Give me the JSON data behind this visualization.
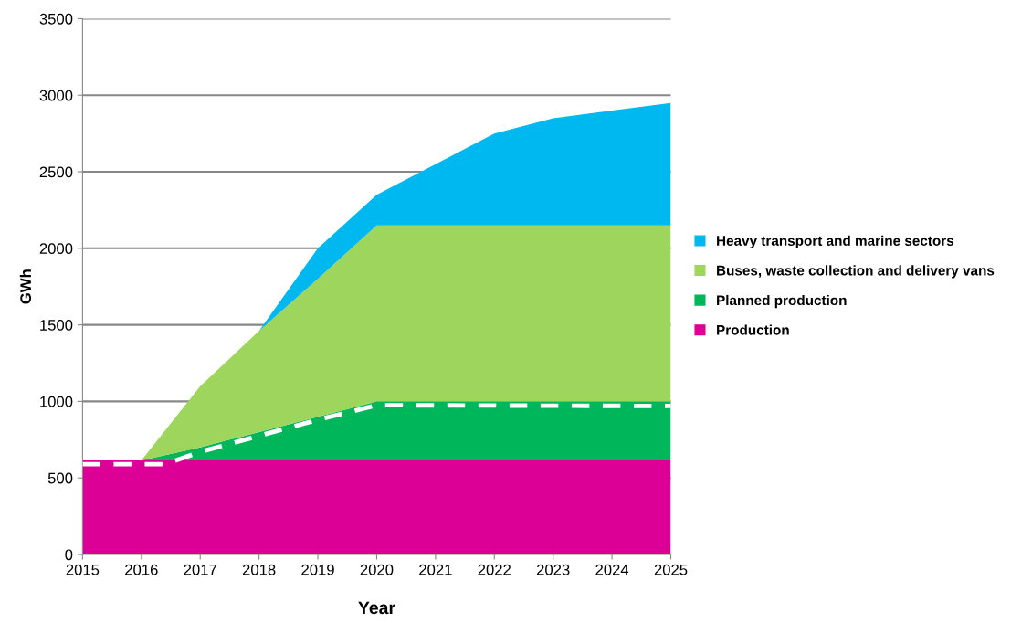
{
  "chart_data": {
    "type": "area",
    "stacked": true,
    "xlabel": "Year",
    "ylabel": "GWh",
    "x": [
      2015,
      2016,
      2017,
      2018,
      2019,
      2020,
      2021,
      2022,
      2023,
      2024,
      2025
    ],
    "series": [
      {
        "name": "Production",
        "color": "#dc0096",
        "values": [
          615,
          615,
          615,
          615,
          615,
          615,
          615,
          615,
          615,
          615,
          615
        ]
      },
      {
        "name": "Planned production",
        "color": "#00b65a",
        "values": [
          0,
          0,
          85,
          185,
          285,
          385,
          385,
          385,
          385,
          385,
          385
        ]
      },
      {
        "name": "Buses, waste collection and delivery vans",
        "color": "#9ed55d",
        "values": [
          0,
          0,
          400,
          660,
          900,
          1150,
          1150,
          1150,
          1150,
          1150,
          1150
        ]
      },
      {
        "name": "Heavy transport and marine sectors",
        "color": "#00b8f0",
        "values": [
          0,
          0,
          0,
          0,
          200,
          200,
          400,
          600,
          700,
          750,
          800
        ]
      },
      {
        "type": "line",
        "color": "#ffffff",
        "line_style": "dashed",
        "x": [
          2015,
          2016.4,
          2017,
          2018,
          2019,
          2020,
          2025
        ],
        "values": [
          590,
          590,
          670,
          775,
          880,
          975,
          970
        ]
      }
    ],
    "xlim": [
      2015,
      2025
    ],
    "xticks": [
      2015,
      2016,
      2017,
      2018,
      2019,
      2020,
      2021,
      2022,
      2023,
      2024,
      2025
    ],
    "ylim": [
      0,
      3500
    ],
    "yticks": [
      0,
      500,
      1000,
      1500,
      2000,
      2500,
      3000,
      3500
    ],
    "grid": "y",
    "legend": "right"
  }
}
